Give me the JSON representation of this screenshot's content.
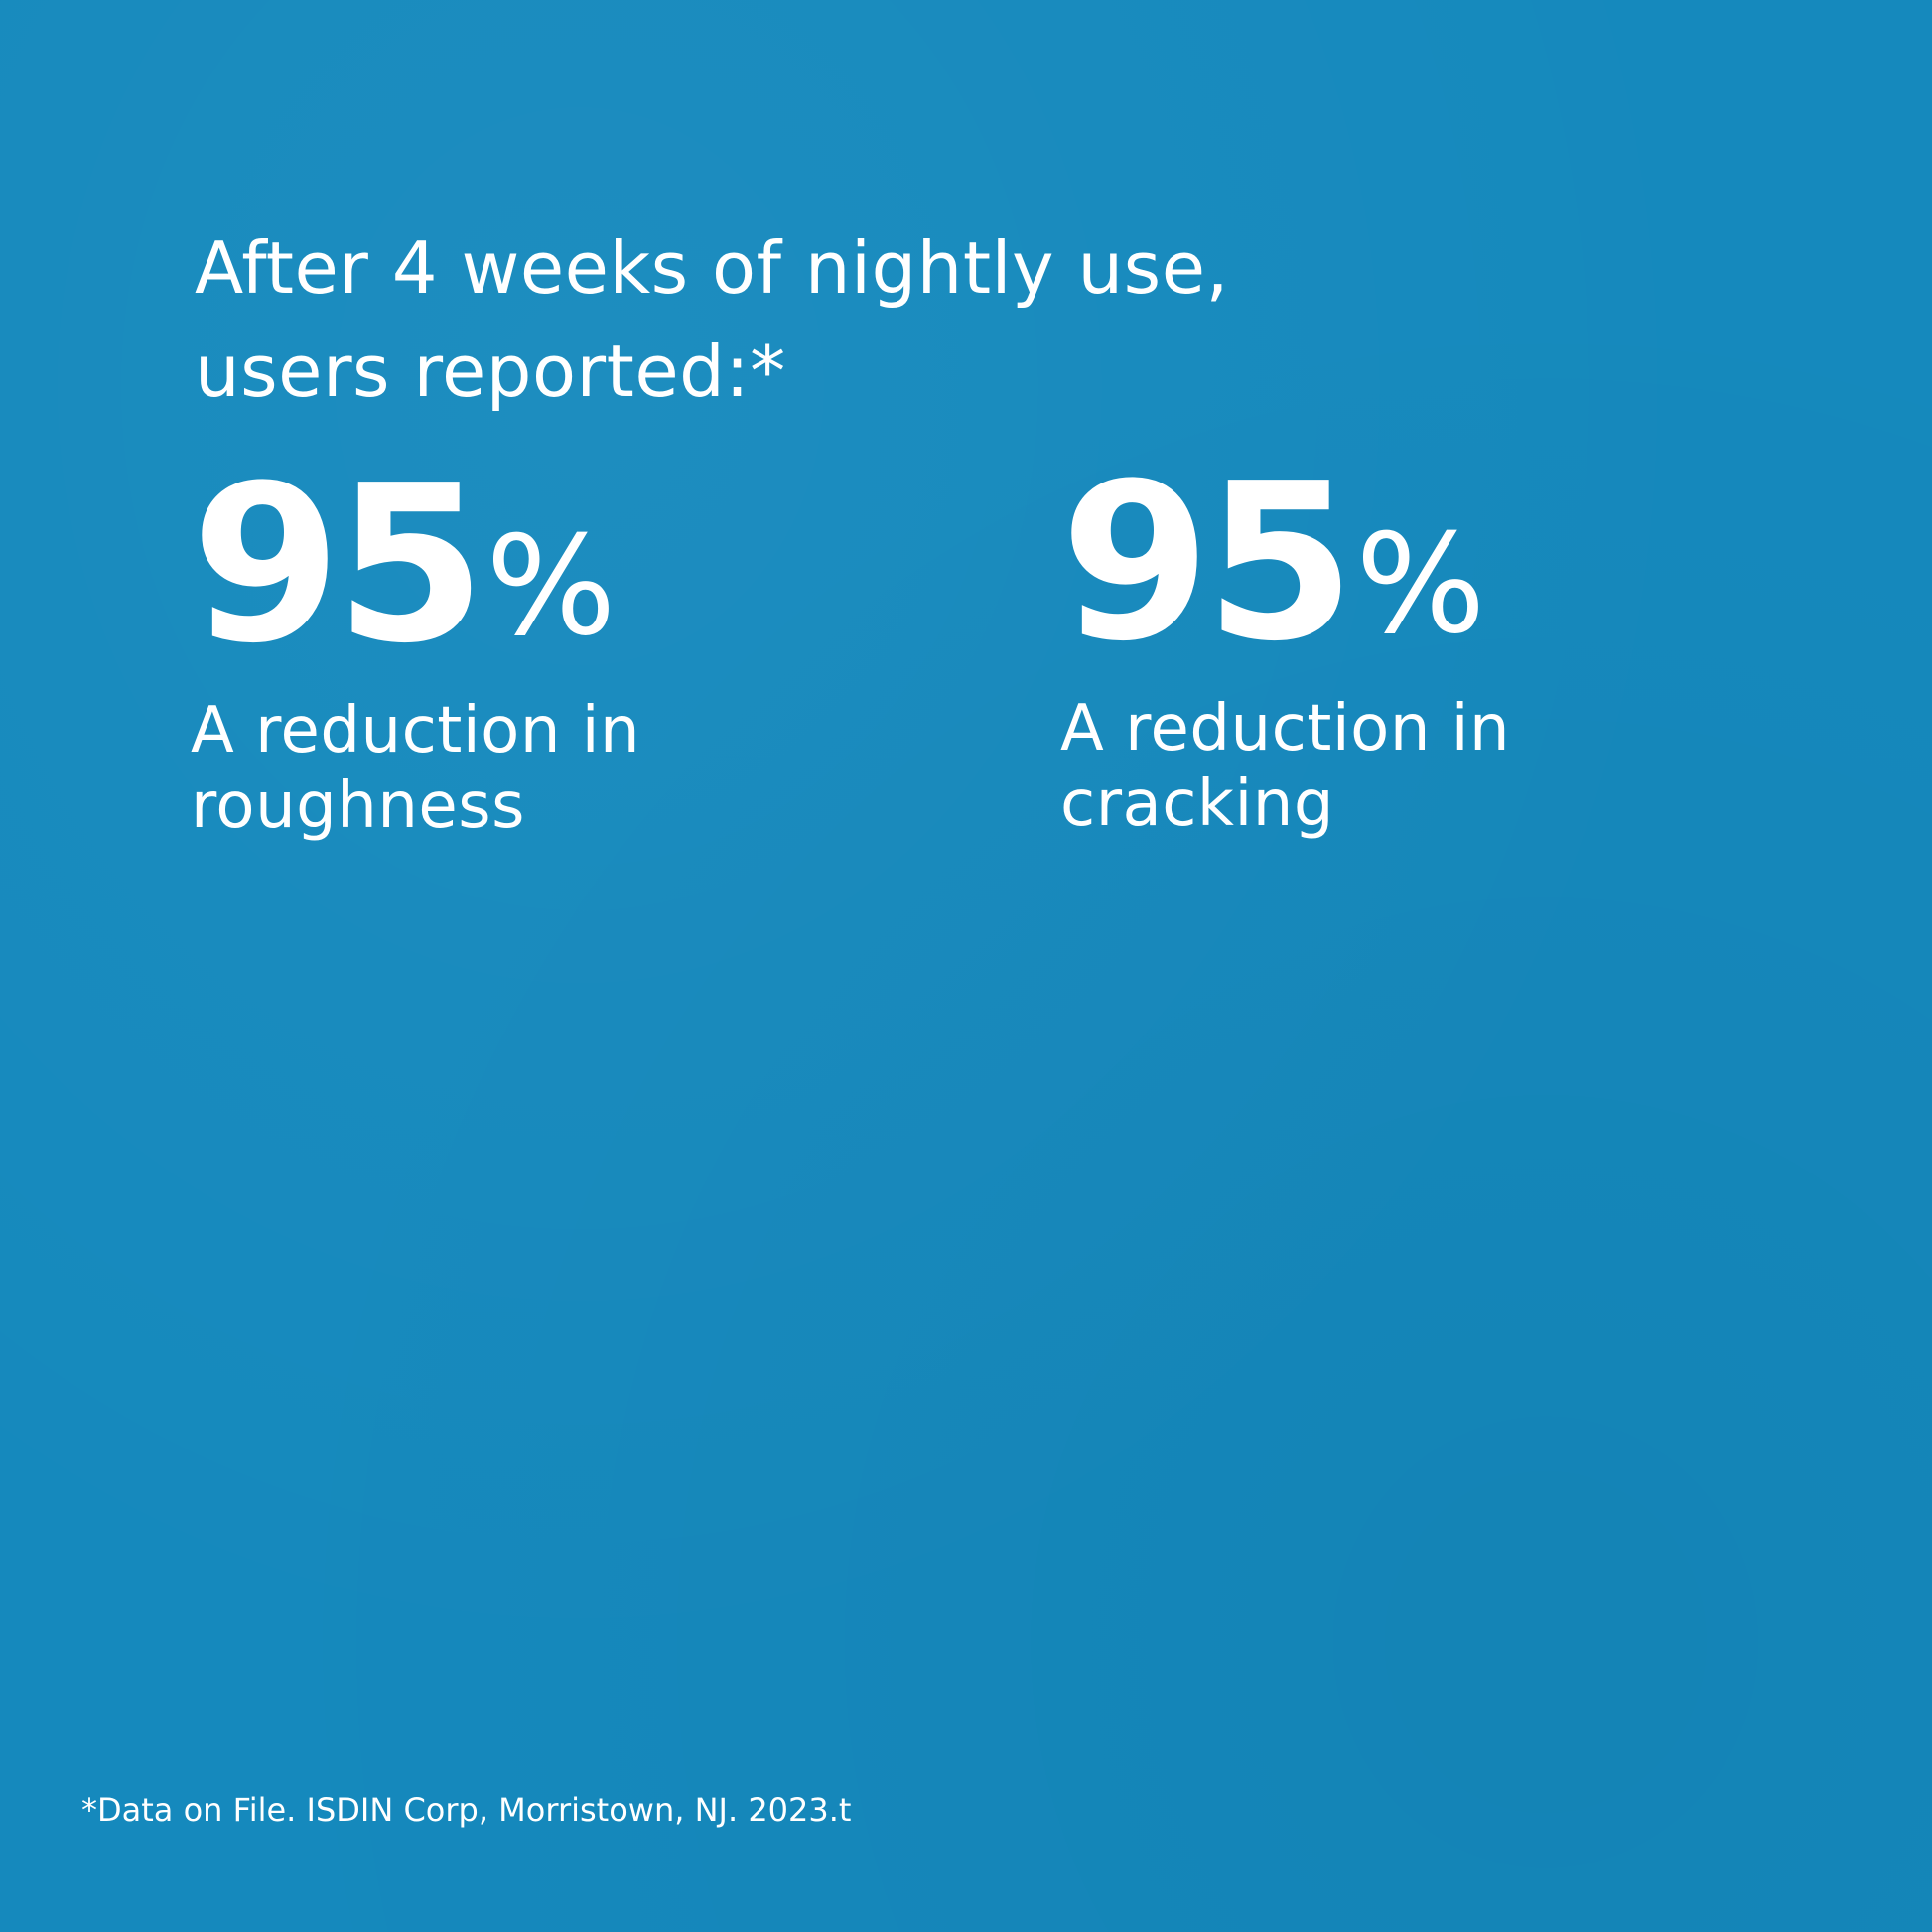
{
  "colors": {
    "background": "#1589bd",
    "text": "#ffffff"
  },
  "headline": {
    "line1": "After 4 weeks of nightly use,",
    "line2": "users reported:*"
  },
  "stats": [
    {
      "value": "95",
      "unit": "%",
      "label_line1": "A reduction in",
      "label_line2": "roughness"
    },
    {
      "value": "95",
      "unit": "%",
      "label_line1": "A reduction in",
      "label_line2": "cracking"
    }
  ],
  "footnote": "*Data on File. ISDIN Corp, Morristown, NJ. 2023.t"
}
